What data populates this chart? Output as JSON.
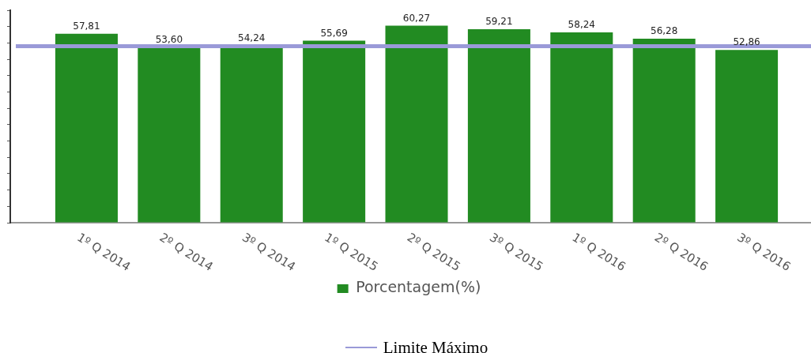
{
  "chart_data": {
    "type": "bar",
    "categories": [
      "1º Q 2014",
      "2º Q 2014",
      "3º Q 2014",
      "1º Q 2015",
      "2º Q 2015",
      "3º Q 2015",
      "1º Q 2016",
      "2º Q 2016",
      "3º Q 2016"
    ],
    "series": [
      {
        "name": "Porcentagem(%)",
        "color": "#228b22",
        "values": [
          57.81,
          53.6,
          54.24,
          55.69,
          60.27,
          59.21,
          58.24,
          56.28,
          52.86
        ],
        "value_labels": [
          "57,81",
          "53,60",
          "54,24",
          "55,69",
          "60,27",
          "59,21",
          "58,24",
          "56,28",
          "52,86"
        ]
      }
    ],
    "tick_labels": "x",
    "legend": "bottom",
    "ref_lines": [
      {
        "axis": "y",
        "value": 54,
        "label": "Limite Máximo",
        "color": "#9a9ad8"
      }
    ]
  }
}
